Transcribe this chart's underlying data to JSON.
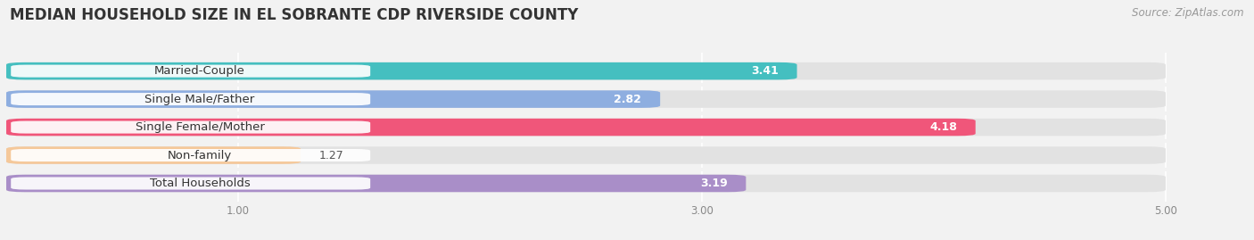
{
  "title": "MEDIAN HOUSEHOLD SIZE IN EL SOBRANTE CDP RIVERSIDE COUNTY",
  "source": "Source: ZipAtlas.com",
  "categories": [
    "Married-Couple",
    "Single Male/Father",
    "Single Female/Mother",
    "Non-family",
    "Total Households"
  ],
  "values": [
    3.41,
    2.82,
    4.18,
    1.27,
    3.19
  ],
  "colors": [
    "#45bfc0",
    "#8eaee0",
    "#f0567a",
    "#f5c89a",
    "#a98ec8"
  ],
  "value_text_colors": [
    "white",
    "black",
    "white",
    "black",
    "black"
  ],
  "xlim": [
    0,
    5.3
  ],
  "xlim_display": [
    0,
    5.0
  ],
  "xticks": [
    1.0,
    3.0,
    5.0
  ],
  "bar_height": 0.62,
  "bar_gap": 0.38,
  "title_fontsize": 12,
  "label_fontsize": 9.5,
  "value_fontsize": 9,
  "source_fontsize": 8.5,
  "background_color": "#f2f2f2",
  "bar_background_color": "#e2e2e2",
  "grid_color": "#ffffff"
}
